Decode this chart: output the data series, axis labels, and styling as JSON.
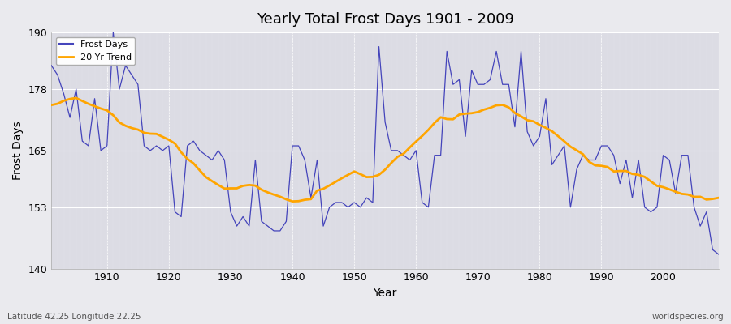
{
  "title": "Yearly Total Frost Days 1901 - 2009",
  "xlabel": "Year",
  "ylabel": "Frost Days",
  "bottom_left_label": "Latitude 42.25 Longitude 22.25",
  "bottom_right_label": "worldspecies.org",
  "ylim": [
    140,
    190
  ],
  "xlim": [
    1901,
    2009
  ],
  "yticks": [
    140,
    153,
    165,
    178,
    190
  ],
  "xticks": [
    1910,
    1920,
    1930,
    1940,
    1950,
    1960,
    1970,
    1980,
    1990,
    2000
  ],
  "line_color": "#4444bb",
  "trend_color": "#FFA500",
  "bg_color": "#e8e8ec",
  "plot_bg_color": "#e0e0e8",
  "legend_entries": [
    "Frost Days",
    "20 Yr Trend"
  ],
  "frost_days": [
    183,
    181,
    177,
    172,
    178,
    167,
    166,
    176,
    165,
    166,
    190,
    178,
    183,
    181,
    179,
    166,
    165,
    166,
    165,
    166,
    152,
    151,
    166,
    167,
    165,
    164,
    163,
    165,
    163,
    152,
    149,
    151,
    149,
    163,
    150,
    149,
    148,
    148,
    150,
    166,
    166,
    163,
    155,
    163,
    149,
    153,
    154,
    154,
    153,
    154,
    153,
    155,
    154,
    187,
    171,
    165,
    165,
    164,
    163,
    165,
    154,
    153,
    164,
    164,
    186,
    179,
    180,
    168,
    182,
    179,
    179,
    180,
    186,
    179,
    179,
    170,
    186,
    169,
    166,
    168,
    176,
    162,
    164,
    166,
    153,
    161,
    164,
    163,
    163,
    166,
    166,
    164,
    158,
    163,
    155,
    163,
    153,
    152,
    153,
    164,
    163,
    156,
    164,
    164,
    153,
    149,
    152,
    144,
    143
  ],
  "years": [
    1901,
    1902,
    1903,
    1904,
    1905,
    1906,
    1907,
    1908,
    1909,
    1910,
    1911,
    1912,
    1913,
    1914,
    1915,
    1916,
    1917,
    1918,
    1919,
    1920,
    1921,
    1922,
    1923,
    1924,
    1925,
    1926,
    1927,
    1928,
    1929,
    1930,
    1931,
    1932,
    1933,
    1934,
    1935,
    1936,
    1937,
    1938,
    1939,
    1940,
    1941,
    1942,
    1943,
    1944,
    1945,
    1946,
    1947,
    1948,
    1949,
    1950,
    1951,
    1952,
    1953,
    1954,
    1955,
    1956,
    1957,
    1958,
    1959,
    1960,
    1961,
    1962,
    1963,
    1964,
    1965,
    1966,
    1967,
    1968,
    1969,
    1970,
    1971,
    1972,
    1973,
    1974,
    1975,
    1976,
    1977,
    1978,
    1979,
    1980,
    1981,
    1982,
    1983,
    1984,
    1985,
    1986,
    1987,
    1988,
    1989,
    1990,
    1991,
    1992,
    1993,
    1994,
    1995,
    1996,
    1997,
    1998,
    1999,
    2000,
    2001,
    2002,
    2003,
    2004,
    2005,
    2006,
    2007,
    2008,
    2009
  ]
}
